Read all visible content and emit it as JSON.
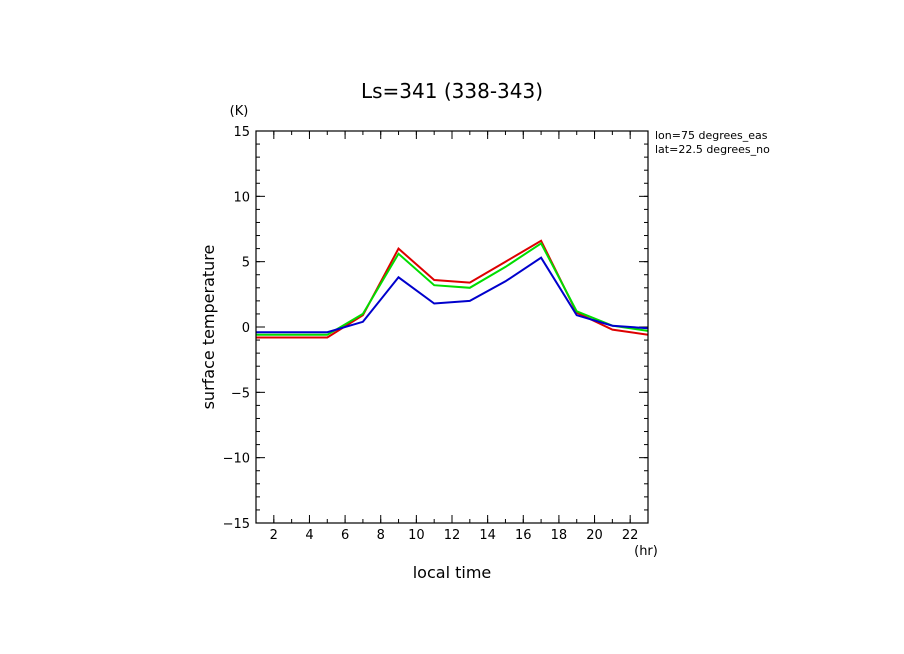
{
  "chart_data": {
    "type": "line",
    "title": "Ls=341 (338-343)",
    "xlabel": "local time",
    "ylabel": "surface temperature",
    "x_unit": "(hr)",
    "y_unit": "(K)",
    "annotations": [
      "lon=75 degrees_eas",
      "lat=22.5 degrees_no"
    ],
    "xlim": [
      1,
      23
    ],
    "ylim": [
      -15,
      15
    ],
    "x_ticks": [
      2,
      4,
      6,
      8,
      10,
      12,
      14,
      16,
      18,
      20,
      22
    ],
    "y_ticks": [
      -15,
      -10,
      -5,
      0,
      5,
      10,
      15
    ],
    "grid": false,
    "x": [
      1,
      3,
      5,
      7,
      9,
      11,
      13,
      15,
      17,
      19,
      21,
      23
    ],
    "series": [
      {
        "color": "#dd0000",
        "values": [
          -0.8,
          -0.8,
          -0.8,
          0.9,
          6.0,
          3.6,
          3.4,
          5.0,
          6.6,
          1.1,
          -0.2,
          -0.6
        ]
      },
      {
        "color": "#00dd00",
        "values": [
          -0.6,
          -0.6,
          -0.6,
          1.0,
          5.6,
          3.2,
          3.0,
          4.6,
          6.4,
          1.2,
          0.1,
          -0.3
        ]
      },
      {
        "color": "#0000cc",
        "values": [
          -0.4,
          -0.4,
          -0.4,
          0.4,
          3.8,
          1.8,
          2.0,
          3.5,
          5.3,
          0.9,
          0.1,
          -0.1
        ]
      }
    ]
  }
}
